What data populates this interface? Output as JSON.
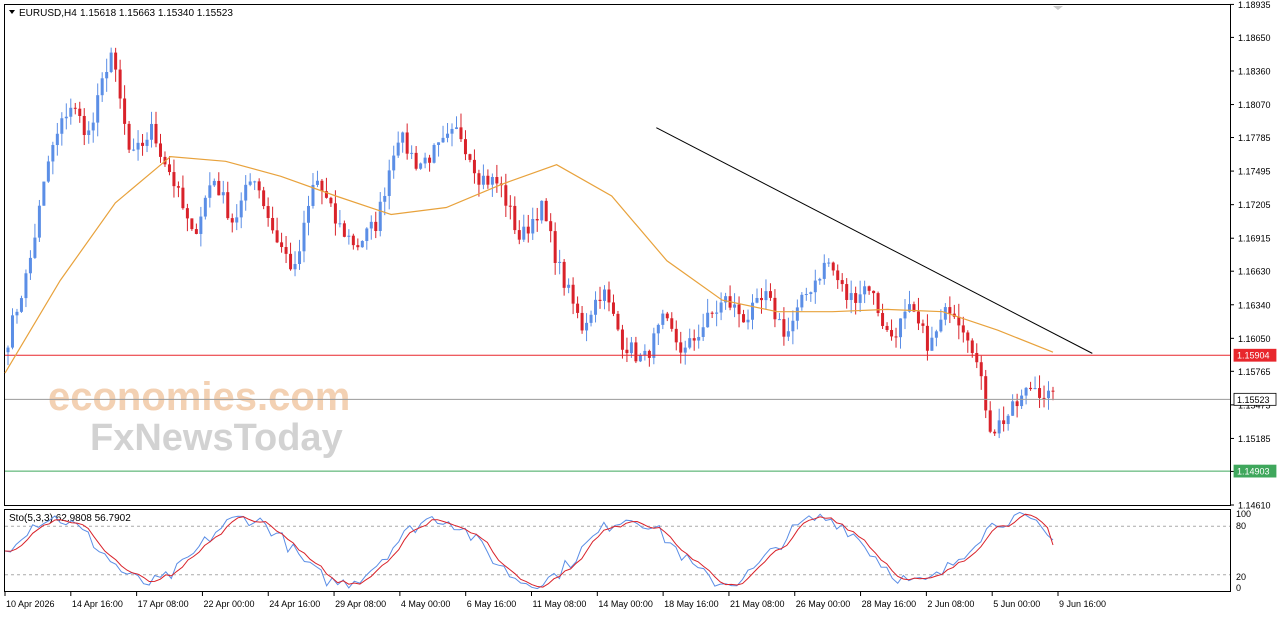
{
  "header": {
    "symbol": "EURUSD,H4",
    "ohlc": "1.15618 1.15663 1.15340 1.15523"
  },
  "indicator": {
    "label": "Sto(5,3,3) 62.9808 56.7902",
    "levels": [
      "100",
      "80",
      "20",
      "0"
    ]
  },
  "watermark": {
    "line1": "economies.com",
    "line2": "FxNewsToday"
  },
  "colors": {
    "bull": "#5b8ee6",
    "bear": "#d9222a",
    "ma": "#e8a23c",
    "trendline": "#000000",
    "resistance": "#e8272c",
    "support": "#3fa75c",
    "current": "#9a9a9a",
    "stoch_k": "#5b8ee6",
    "stoch_d": "#d9222a"
  },
  "chart_data": {
    "type": "candlestick",
    "symbol": "EURUSD",
    "timeframe": "H4",
    "y_ticks": [
      "1.18935",
      "1.18650",
      "1.18360",
      "1.18070",
      "1.17785",
      "1.17495",
      "1.17205",
      "1.16915",
      "1.16630",
      "1.16340",
      "1.16050",
      "1.15765",
      "1.15475",
      "1.15185",
      "1.14900",
      "1.14610"
    ],
    "ylim": [
      1.1461,
      1.1893
    ],
    "x_ticks": [
      "10 Apr 2026",
      "14 Apr 16:00",
      "17 Apr 08:00",
      "22 Apr 00:00",
      "24 Apr 16:00",
      "29 Apr 08:00",
      "4 May 00:00",
      "6 May 16:00",
      "11 May 08:00",
      "14 May 00:00",
      "18 May 16:00",
      "21 May 08:00",
      "26 May 00:00",
      "28 May 16:00",
      "2 Jun 08:00",
      "5 Jun 00:00",
      "9 Jun 16:00"
    ],
    "price_anchors": [
      1.1605,
      1.1665,
      1.176,
      1.1808,
      1.178,
      1.1855,
      1.1758,
      1.1785,
      1.1745,
      1.1692,
      1.1745,
      1.1705,
      1.1748,
      1.1695,
      1.1662,
      1.1745,
      1.1705,
      1.1685,
      1.1705,
      1.1782,
      1.1755,
      1.1768,
      1.1785,
      1.1745,
      1.1738,
      1.169,
      1.172,
      1.166,
      1.1615,
      1.1648,
      1.1602,
      1.1585,
      1.162,
      1.1592,
      1.1618,
      1.1638,
      1.1622,
      1.164,
      1.1608,
      1.1645,
      1.1672,
      1.1638,
      1.1652,
      1.1605,
      1.1628,
      1.1598,
      1.1635,
      1.1605,
      1.1525,
      1.1542,
      1.1565,
      1.1552
    ],
    "candle_count": 234,
    "levels": [
      {
        "name": "resistance",
        "value": "1.15904"
      },
      {
        "name": "current",
        "value": "1.15523"
      },
      {
        "name": "support",
        "value": "1.14903"
      }
    ],
    "ma_anchors": [
      1.1575,
      1.1655,
      1.1722,
      1.1762,
      1.1758,
      1.1745,
      1.1728,
      1.1712,
      1.1718,
      1.1738,
      1.1755,
      1.1728,
      1.1672,
      1.1638,
      1.1628,
      1.1628,
      1.163,
      1.1628,
      1.1612,
      1.1593
    ],
    "trendline": {
      "from": [
        0.5317,
        1.1787
      ],
      "to": [
        0.8876,
        1.1592
      ]
    },
    "stochastic": {
      "k_last": 62.9808,
      "d_last": 56.7902,
      "levels": [
        80,
        20
      ]
    }
  }
}
